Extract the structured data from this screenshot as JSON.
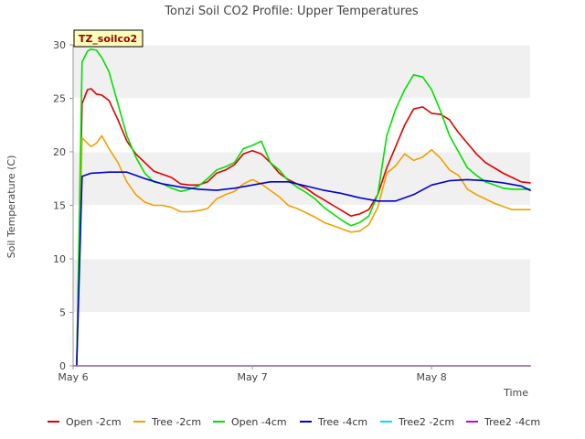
{
  "chart_data": {
    "type": "line",
    "title": "Tonzi Soil CO2 Profile: Upper Temperatures",
    "xlabel": "Time",
    "ylabel": "Soil Temperature (C)",
    "xlim": [
      0,
      2.55
    ],
    "ylim": [
      0,
      30
    ],
    "x_ticks": [
      {
        "x": 0,
        "label": "May 6"
      },
      {
        "x": 1,
        "label": "May 7"
      },
      {
        "x": 2,
        "label": "May 8"
      }
    ],
    "y_ticks": [
      0,
      5,
      10,
      15,
      20,
      25,
      30
    ],
    "grid": true,
    "legend_position": "bottom",
    "annotation": "TZ_soilco2",
    "series": [
      {
        "name": "Open -2cm",
        "color": "#dd0000",
        "x": [
          0.02,
          0.05,
          0.08,
          0.1,
          0.13,
          0.16,
          0.2,
          0.25,
          0.3,
          0.35,
          0.4,
          0.45,
          0.5,
          0.55,
          0.6,
          0.65,
          0.7,
          0.75,
          0.8,
          0.85,
          0.9,
          0.95,
          1.0,
          1.05,
          1.1,
          1.15,
          1.2,
          1.25,
          1.3,
          1.35,
          1.4,
          1.45,
          1.5,
          1.55,
          1.6,
          1.65,
          1.7,
          1.75,
          1.8,
          1.85,
          1.9,
          1.95,
          2.0,
          2.05,
          2.1,
          2.12,
          2.15,
          2.2,
          2.25,
          2.3,
          2.35,
          2.4,
          2.45,
          2.5,
          2.55
        ],
        "y": [
          0,
          24.5,
          25.8,
          25.9,
          25.4,
          25.3,
          24.8,
          23.0,
          21.0,
          19.8,
          19.0,
          18.2,
          17.9,
          17.6,
          17.0,
          16.9,
          16.9,
          17.2,
          18.0,
          18.3,
          18.8,
          19.8,
          20.1,
          19.8,
          19.0,
          18.0,
          17.4,
          17.0,
          16.6,
          16.0,
          15.5,
          15.0,
          14.5,
          14.0,
          14.2,
          14.6,
          16.0,
          18.5,
          20.5,
          22.5,
          24.0,
          24.2,
          23.6,
          23.5,
          23.0,
          22.5,
          21.8,
          20.8,
          19.8,
          19.0,
          18.5,
          18.0,
          17.6,
          17.2,
          17.1
        ]
      },
      {
        "name": "Tree -2cm",
        "color": "#f0a000",
        "x": [
          0.02,
          0.05,
          0.08,
          0.1,
          0.13,
          0.16,
          0.2,
          0.25,
          0.3,
          0.35,
          0.4,
          0.45,
          0.5,
          0.55,
          0.6,
          0.65,
          0.7,
          0.75,
          0.8,
          0.85,
          0.9,
          0.95,
          1.0,
          1.05,
          1.1,
          1.15,
          1.2,
          1.25,
          1.3,
          1.35,
          1.4,
          1.45,
          1.5,
          1.55,
          1.6,
          1.65,
          1.7,
          1.75,
          1.8,
          1.85,
          1.9,
          1.95,
          2.0,
          2.05,
          2.1,
          2.15,
          2.2,
          2.25,
          2.3,
          2.35,
          2.4,
          2.45,
          2.5,
          2.55
        ],
        "y": [
          0,
          21.3,
          20.8,
          20.5,
          20.8,
          21.5,
          20.3,
          19.0,
          17.2,
          16.0,
          15.3,
          15.0,
          15.0,
          14.8,
          14.4,
          14.4,
          14.5,
          14.7,
          15.6,
          16.0,
          16.3,
          17.0,
          17.4,
          17.0,
          16.4,
          15.8,
          15.0,
          14.7,
          14.3,
          13.9,
          13.4,
          13.1,
          12.8,
          12.5,
          12.6,
          13.2,
          14.8,
          18.0,
          18.7,
          19.8,
          19.2,
          19.5,
          20.2,
          19.4,
          18.3,
          17.8,
          16.5,
          16.0,
          15.6,
          15.2,
          14.9,
          14.6,
          14.6,
          14.6
        ]
      },
      {
        "name": "Open -4cm",
        "color": "#00e000",
        "x": [
          0.02,
          0.05,
          0.08,
          0.1,
          0.13,
          0.16,
          0.2,
          0.25,
          0.3,
          0.35,
          0.4,
          0.45,
          0.5,
          0.55,
          0.6,
          0.65,
          0.7,
          0.75,
          0.8,
          0.85,
          0.9,
          0.95,
          1.0,
          1.05,
          1.1,
          1.15,
          1.2,
          1.25,
          1.3,
          1.35,
          1.4,
          1.45,
          1.5,
          1.55,
          1.6,
          1.65,
          1.7,
          1.75,
          1.8,
          1.85,
          1.9,
          1.95,
          2.0,
          2.05,
          2.1,
          2.15,
          2.2,
          2.25,
          2.3,
          2.35,
          2.4,
          2.45,
          2.5,
          2.55
        ],
        "y": [
          0,
          28.4,
          29.4,
          29.6,
          29.5,
          28.8,
          27.5,
          24.5,
          21.5,
          19.5,
          18.0,
          17.2,
          17.0,
          16.6,
          16.3,
          16.5,
          16.8,
          17.5,
          18.3,
          18.6,
          19.0,
          20.3,
          20.6,
          21.0,
          19.0,
          18.3,
          17.3,
          16.7,
          16.2,
          15.6,
          14.8,
          14.2,
          13.6,
          13.1,
          13.4,
          14.0,
          16.0,
          21.5,
          24.0,
          25.8,
          27.2,
          27.0,
          25.8,
          23.8,
          21.5,
          20.0,
          18.5,
          17.8,
          17.2,
          16.9,
          16.6,
          16.5,
          16.5,
          16.5
        ]
      },
      {
        "name": "Tree -4cm",
        "color": "#0000cc",
        "x": [
          0.02,
          0.05,
          0.1,
          0.2,
          0.3,
          0.4,
          0.5,
          0.6,
          0.7,
          0.8,
          0.9,
          1.0,
          1.1,
          1.2,
          1.3,
          1.4,
          1.5,
          1.6,
          1.7,
          1.8,
          1.9,
          2.0,
          2.1,
          2.2,
          2.3,
          2.4,
          2.5,
          2.55
        ],
        "y": [
          0,
          17.7,
          18.0,
          18.1,
          18.1,
          17.5,
          17.0,
          16.7,
          16.5,
          16.4,
          16.6,
          16.9,
          17.2,
          17.2,
          16.8,
          16.4,
          16.1,
          15.7,
          15.4,
          15.4,
          16.0,
          16.9,
          17.3,
          17.4,
          17.3,
          17.1,
          16.8,
          16.4
        ]
      },
      {
        "name": "Tree2 -2cm",
        "color": "#00e0f0",
        "x": [
          0,
          2.55
        ],
        "y": [
          0,
          0
        ]
      },
      {
        "name": "Tree2 -4cm",
        "color": "#cc00cc",
        "x": [
          0,
          2.55
        ],
        "y": [
          0,
          0
        ]
      }
    ]
  }
}
